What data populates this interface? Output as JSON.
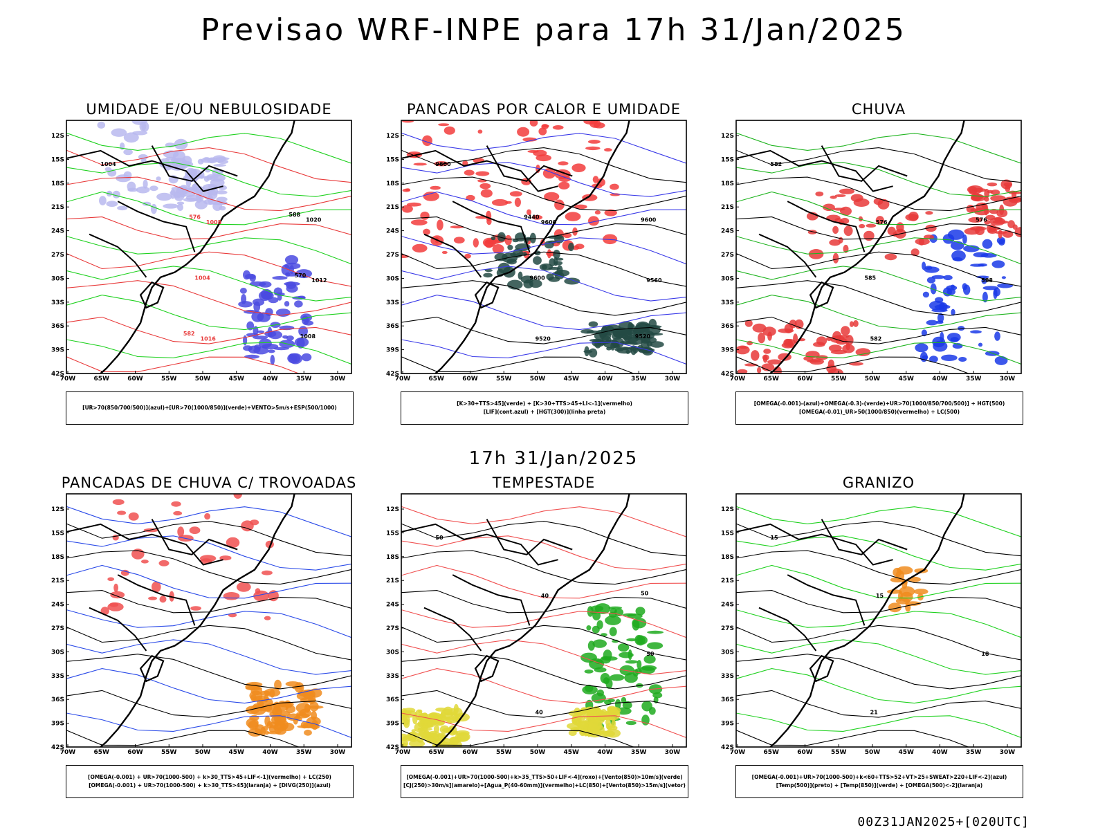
{
  "title": "Previsao WRF-INPE  para 17h 31/Jan/2025",
  "mid_time": "17h 31/Jan/2025",
  "footer": "00Z31JAN2025+[020UTC]",
  "axes": {
    "lat_labels": [
      "12S",
      "15S",
      "18S",
      "21S",
      "24S",
      "27S",
      "30S",
      "33S",
      "36S",
      "39S",
      "42S"
    ],
    "lon_labels": [
      "70W",
      "65W",
      "60W",
      "55W",
      "50W",
      "45W",
      "40W",
      "35W",
      "30W"
    ]
  },
  "panels": [
    {
      "id": "umidade",
      "title": "UMIDADE E/OU NEBULOSIDADE",
      "legend": [
        "[UR>70(850/700/500)](azul)+[UR>70(1000/850)](verde)+VENTO>5m/s+ESP(500/1000)"
      ],
      "contour_labels": [
        "1004",
        "1008",
        "1012",
        "1016",
        "1020",
        "1004",
        "1008",
        "576",
        "570",
        "582",
        "588"
      ],
      "colors": {
        "fill1": "#b9b9ee",
        "fill2": "#4a4ae0",
        "contour_a": "#1fd11f",
        "contour_b": "#e83a3a",
        "contour_c": "#000000"
      }
    },
    {
      "id": "pancadas-calor",
      "title": "PANCADAS POR CALOR E UMIDADE",
      "legend": [
        "[K>30+TTS>45](verde) + [K>30+TTS>45+LI<-1](vermelho)",
        "[LIF](cont.azul) + [HGT(300)](linha preta)"
      ],
      "contour_labels": [
        "9600",
        "9600",
        "9560",
        "9520",
        "9600",
        "9600",
        "9520",
        "9440"
      ],
      "colors": {
        "fill1": "#f23c3c",
        "fill2": "#234a44",
        "contour_a": "#3a3ae8",
        "contour_b": "#000000",
        "contour_c": "#000000"
      }
    },
    {
      "id": "chuva",
      "title": "CHUVA",
      "legend": [
        "[OMEGA(-0.001)-(azul)+OMEGA(-0.3)-(verde)+UR>70(1000/850/700/500)] + HGT(500)",
        "[OMEGA(-0.01)_UR>50(1000/850)(vermelho) + LC(500)"
      ],
      "contour_labels": [
        "582",
        "576",
        "588",
        "582",
        "576",
        "585"
      ],
      "colors": {
        "fill1": "#e83a3a",
        "fill2": "#1a3ae8",
        "contour_a": "#1fb41f",
        "contour_b": "#000000",
        "contour_c": "#000000"
      }
    },
    {
      "id": "trovoadas",
      "title": "PANCADAS DE CHUVA C/ TROVOADAS",
      "legend": [
        "[OMEGA(-0.001) + UR>70(1000-500) + k>30_TTS>45+LIF<-1](vermelho) + LC(250)",
        "[OMEGA(-0.001) + UR>70(1000-500) + k>30_TTS>45](laranja) + [DIVG(250)](azul)"
      ],
      "contour_labels": [],
      "colors": {
        "fill1": "#f05050",
        "fill2": "#f08c1e",
        "contour_a": "#2a4ae8",
        "contour_b": "#000000",
        "contour_c": "#000000"
      }
    },
    {
      "id": "tempestade",
      "title": "TEMPESTADE",
      "legend": [
        "[OMEGA(-0.001)+UR>70(1000-500)+k>35_TTS>50+LIF<-4](roxo)+[Vento(850)>10m/s](verde)",
        "[CJ(250)>30m/s](amarelo)+[Agua_P(40-60mm)](vermelho)+LC(850)+[Vento(850)>15m/s](vetor)"
      ],
      "contour_labels": [
        "50",
        "40",
        "50",
        "40",
        "50"
      ],
      "colors": {
        "fill1": "#1faa1f",
        "fill2": "#e0d838",
        "contour_a": "#f05050",
        "contour_b": "#000000",
        "contour_c": "#000000"
      }
    },
    {
      "id": "granizo",
      "title": "GRANIZO",
      "legend": [
        "[OMEGA(-0.001)+UR>70(1000-500)+k<60+TTS>52+VT>25+SWEAT>220+LIF<-2](azul)",
        "[Temp(500)](preto) + [Temp(850)](verde) + [OMEGA(500)<-2](laranja)"
      ],
      "contour_labels": [
        "15",
        "15",
        "18",
        "21"
      ],
      "colors": {
        "fill1": "#f08c1e",
        "fill2": "#f08c1e",
        "contour_a": "#1fd11f",
        "contour_b": "#000000",
        "contour_c": "#000000"
      }
    }
  ]
}
